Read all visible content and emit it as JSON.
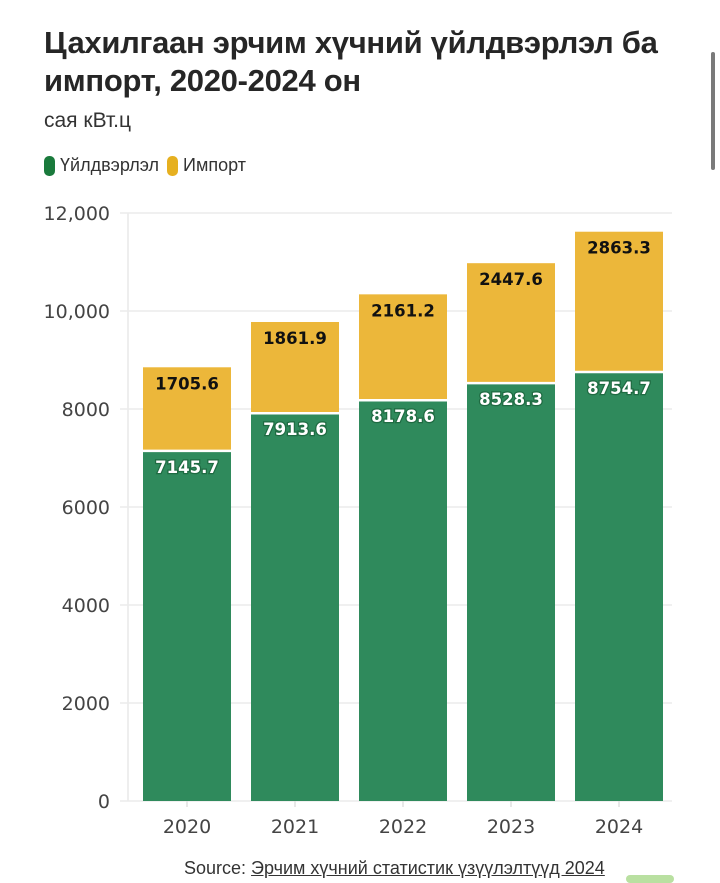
{
  "header": {
    "title": "Цахилгаан эрчим хүчний үйлдвэрлэл ба импорт, 2020-2024 он",
    "subtitle": "сая кВт.ц"
  },
  "legend": [
    {
      "label": "Үйлдвэрлэл",
      "color": "#1a7a3c"
    },
    {
      "label": "Импорт",
      "color": "#e6b020"
    }
  ],
  "source": {
    "prefix": "Source: ",
    "link_text": "Эрчим хүчний статистик үзүүлэлтүүд 2024"
  },
  "chart_data": {
    "type": "bar",
    "stacked": true,
    "title": "Цахилгаан эрчим хүчний үйлдвэрлэл ба импорт, 2020-2024 он",
    "subtitle": "сая кВт.ц",
    "xlabel": "",
    "ylabel": "",
    "categories": [
      "2020",
      "2021",
      "2022",
      "2023",
      "2024"
    ],
    "series": [
      {
        "name": "Үйлдвэрлэл",
        "color": "#2f8a5c",
        "label_color": "#ffffff",
        "values": [
          7145.7,
          7913.6,
          8178.6,
          8528.3,
          8754.7
        ]
      },
      {
        "name": "Импорт",
        "color": "#ecb73a",
        "label_color": "#111111",
        "values": [
          1705.6,
          1861.9,
          2161.2,
          2447.6,
          2863.3
        ]
      }
    ],
    "ylim": [
      0,
      12000
    ],
    "yticks": [
      0,
      2000,
      4000,
      6000,
      8000,
      10000,
      12000
    ],
    "ytick_labels": [
      "0",
      "2000",
      "4000",
      "6000",
      "8000",
      "10,000",
      "12,000"
    ],
    "grid": true,
    "legend_position": "top-left"
  }
}
